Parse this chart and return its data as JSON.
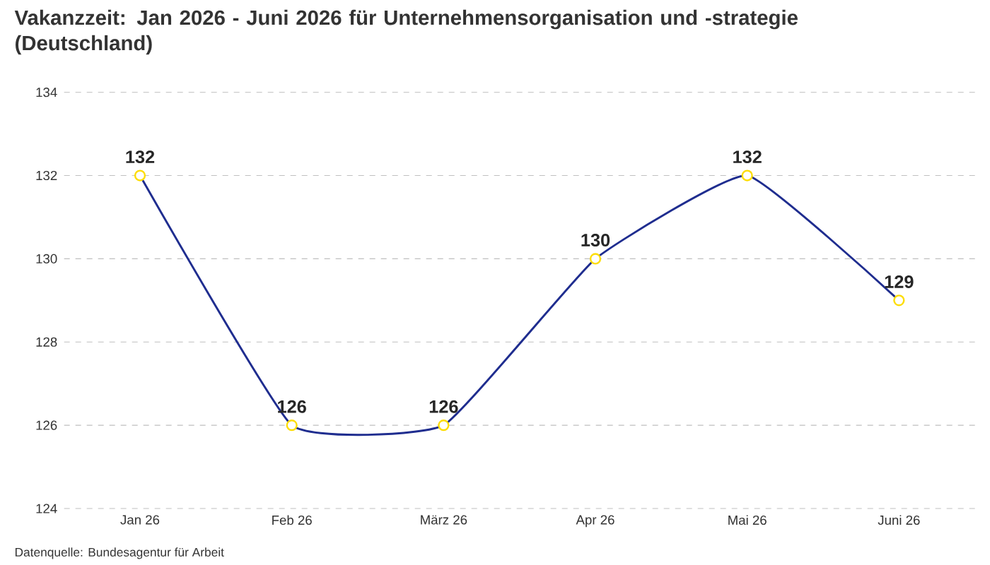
{
  "chart_data": {
    "type": "line",
    "title": "Vakanzzeit: Jan 2026 - Juni 2026 für Unternehmensorganisation und -strategie (Deutschland)",
    "categories": [
      "Jan 26",
      "Feb 26",
      "März 26",
      "Apr 26",
      "Mai 26",
      "Juni 26"
    ],
    "series": [
      {
        "color": "#1f2d8f",
        "values": [
          132,
          126,
          126,
          130,
          132,
          129
        ]
      }
    ],
    "ylim": [
      124,
      134
    ],
    "yticks": [
      124,
      126,
      128,
      130,
      132,
      134
    ],
    "grid": "y",
    "marker": "circle",
    "line_style": "solid",
    "data_labels": true,
    "annotations": [
      "Datenquelle: Bundesagentur für Arbeit"
    ]
  }
}
